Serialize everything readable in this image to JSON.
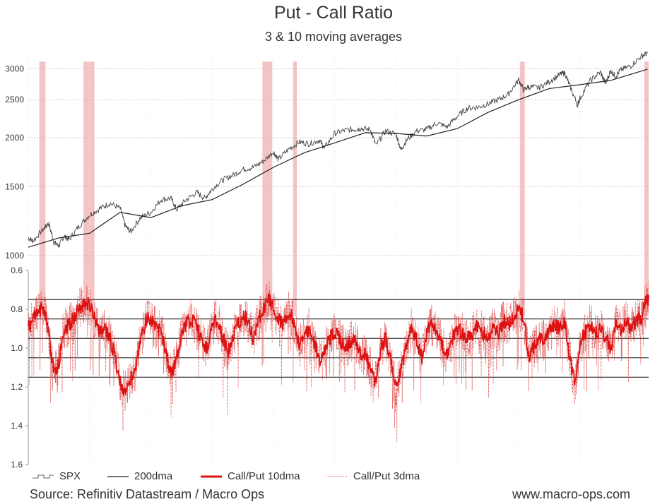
{
  "title": "Put - Call Ratio",
  "subtitle": "3 & 10 moving averages",
  "source": "Source: Refinitiv Datastream / Macro Ops",
  "website": "www.macro-ops.com",
  "colors": {
    "spx": "#444444",
    "dma200": "#222222",
    "cp10": "#dd1111",
    "cp3": "#e05050",
    "highlight": "#f2b8b8",
    "grid": "#c8c8c8"
  },
  "legend": [
    {
      "label": "SPX",
      "key": "spx"
    },
    {
      "label": "200dma",
      "key": "dma200"
    },
    {
      "label": "Call/Put 10dma",
      "key": "cp10"
    },
    {
      "label": "Call/Put 3dma",
      "key": "cp3"
    }
  ],
  "chart_data": [
    {
      "type": "line",
      "scale": "log",
      "yticks": [
        1000,
        1500,
        2000,
        2500,
        3000
      ],
      "ylim": [
        1000,
        3250
      ],
      "xlim": [
        2010.0,
        2020.12
      ],
      "grid": true,
      "series": [
        {
          "name": "SPX",
          "x": [
            2010.0,
            2010.08,
            2010.25,
            2010.33,
            2010.42,
            2010.5,
            2010.58,
            2010.67,
            2010.83,
            2011.0,
            2011.17,
            2011.33,
            2011.5,
            2011.58,
            2011.67,
            2011.83,
            2012.0,
            2012.17,
            2012.33,
            2012.42,
            2012.58,
            2012.75,
            2012.88,
            2013.0,
            2013.17,
            2013.33,
            2013.5,
            2013.67,
            2013.83,
            2014.0,
            2014.08,
            2014.25,
            2014.42,
            2014.58,
            2014.75,
            2014.83,
            2015.0,
            2015.17,
            2015.33,
            2015.42,
            2015.58,
            2015.67,
            2015.83,
            2016.0,
            2016.08,
            2016.17,
            2016.33,
            2016.5,
            2016.67,
            2016.83,
            2017.0,
            2017.17,
            2017.33,
            2017.5,
            2017.67,
            2017.83,
            2018.0,
            2018.08,
            2018.17,
            2018.33,
            2018.5,
            2018.67,
            2018.75,
            2018.83,
            2018.96,
            2019.0,
            2019.17,
            2019.33,
            2019.42,
            2019.5,
            2019.58,
            2019.67,
            2019.83,
            2020.0,
            2020.1
          ],
          "y": [
            1110,
            1090,
            1170,
            1210,
            1080,
            1060,
            1120,
            1100,
            1190,
            1270,
            1320,
            1360,
            1320,
            1190,
            1150,
            1250,
            1290,
            1390,
            1400,
            1310,
            1390,
            1450,
            1400,
            1480,
            1560,
            1600,
            1660,
            1680,
            1740,
            1840,
            1760,
            1870,
            1950,
            1930,
            1970,
            1880,
            2050,
            2090,
            2100,
            2110,
            2100,
            1910,
            2080,
            2040,
            1860,
            1970,
            2080,
            2100,
            2180,
            2130,
            2270,
            2380,
            2390,
            2440,
            2500,
            2580,
            2810,
            2650,
            2700,
            2680,
            2780,
            2900,
            2930,
            2720,
            2420,
            2520,
            2800,
            2940,
            2750,
            2960,
            2870,
            2980,
            3050,
            3230,
            3290
          ]
        },
        {
          "name": "200dma",
          "x": [
            2010.0,
            2010.5,
            2011.0,
            2011.5,
            2012.0,
            2012.5,
            2013.0,
            2013.5,
            2014.0,
            2014.5,
            2015.0,
            2015.5,
            2016.0,
            2016.5,
            2017.0,
            2017.5,
            2018.0,
            2018.5,
            2019.0,
            2019.5,
            2020.1
          ],
          "y": [
            1050,
            1110,
            1140,
            1290,
            1250,
            1340,
            1390,
            1520,
            1680,
            1830,
            1940,
            2060,
            2050,
            2020,
            2110,
            2320,
            2500,
            2670,
            2730,
            2800,
            2990
          ]
        }
      ]
    },
    {
      "type": "line",
      "scale": "linear",
      "inverted": true,
      "yticks": [
        0.6,
        0.8,
        1.0,
        1.2,
        1.4,
        1.6
      ],
      "ylim": [
        0.6,
        1.6
      ],
      "reference_lines": [
        0.75,
        0.85,
        0.95,
        1.05,
        1.15
      ],
      "highlight_periods": [
        [
          2010.18,
          2010.28
        ],
        [
          2010.9,
          2011.08
        ],
        [
          2013.82,
          2013.98
        ],
        [
          2014.32,
          2014.38
        ],
        [
          2018.02,
          2018.1
        ],
        [
          2020.05,
          2020.12
        ]
      ],
      "series": [
        {
          "name": "Call/Put 10dma",
          "x": [
            2010.0,
            2010.08,
            2010.17,
            2010.25,
            2010.33,
            2010.42,
            2010.5,
            2010.58,
            2010.67,
            2010.75,
            2010.83,
            2010.92,
            2011.0,
            2011.08,
            2011.17,
            2011.25,
            2011.33,
            2011.42,
            2011.5,
            2011.58,
            2011.67,
            2011.75,
            2011.83,
            2011.92,
            2012.0,
            2012.08,
            2012.17,
            2012.25,
            2012.33,
            2012.42,
            2012.5,
            2012.58,
            2012.67,
            2012.75,
            2012.83,
            2012.92,
            2013.0,
            2013.08,
            2013.17,
            2013.25,
            2013.33,
            2013.42,
            2013.5,
            2013.58,
            2013.67,
            2013.75,
            2013.83,
            2013.92,
            2014.0,
            2014.08,
            2014.17,
            2014.25,
            2014.33,
            2014.42,
            2014.5,
            2014.58,
            2014.67,
            2014.75,
            2014.83,
            2014.92,
            2015.0,
            2015.08,
            2015.17,
            2015.25,
            2015.33,
            2015.42,
            2015.5,
            2015.58,
            2015.67,
            2015.75,
            2015.83,
            2015.92,
            2016.0,
            2016.08,
            2016.17,
            2016.25,
            2016.33,
            2016.42,
            2016.5,
            2016.58,
            2016.67,
            2016.75,
            2016.83,
            2016.92,
            2017.0,
            2017.08,
            2017.17,
            2017.25,
            2017.33,
            2017.42,
            2017.5,
            2017.58,
            2017.67,
            2017.75,
            2017.83,
            2017.92,
            2018.0,
            2018.08,
            2018.17,
            2018.25,
            2018.33,
            2018.42,
            2018.5,
            2018.58,
            2018.67,
            2018.75,
            2018.83,
            2018.92,
            2019.0,
            2019.08,
            2019.17,
            2019.25,
            2019.33,
            2019.42,
            2019.5,
            2019.58,
            2019.67,
            2019.75,
            2019.83,
            2019.92,
            2020.0,
            2020.08,
            2020.12
          ],
          "y": [
            0.9,
            0.85,
            0.82,
            0.78,
            0.92,
            1.13,
            1.08,
            0.9,
            0.88,
            0.84,
            0.8,
            0.78,
            0.77,
            0.85,
            0.92,
            0.9,
            0.95,
            1.05,
            1.18,
            1.22,
            1.16,
            1.12,
            0.95,
            0.86,
            0.84,
            0.9,
            0.92,
            1.02,
            1.14,
            1.05,
            0.92,
            0.88,
            0.85,
            0.9,
            0.96,
            1.0,
            0.88,
            0.85,
            0.94,
            1.02,
            0.95,
            0.88,
            0.84,
            0.86,
            0.95,
            0.85,
            0.82,
            0.74,
            0.8,
            0.85,
            0.88,
            0.82,
            0.86,
            0.98,
            0.95,
            0.9,
            0.98,
            1.06,
            1.0,
            0.95,
            0.92,
            0.96,
            1.0,
            0.97,
            0.95,
            1.02,
            1.04,
            1.1,
            1.18,
            1.0,
            0.95,
            1.08,
            1.2,
            1.12,
            0.98,
            0.9,
            0.95,
            1.05,
            0.92,
            0.88,
            0.92,
            0.98,
            1.05,
            0.95,
            0.9,
            0.92,
            0.95,
            0.93,
            0.88,
            0.92,
            0.95,
            0.9,
            0.92,
            0.86,
            0.88,
            0.85,
            0.8,
            0.84,
            1.05,
            1.0,
            0.95,
            0.96,
            0.92,
            0.88,
            0.9,
            0.85,
            1.05,
            1.2,
            0.98,
            0.92,
            0.88,
            0.92,
            0.9,
            0.94,
            1.0,
            0.88,
            0.92,
            0.85,
            0.9,
            0.86,
            0.85,
            0.76,
            0.75
          ]
        }
      ]
    }
  ]
}
